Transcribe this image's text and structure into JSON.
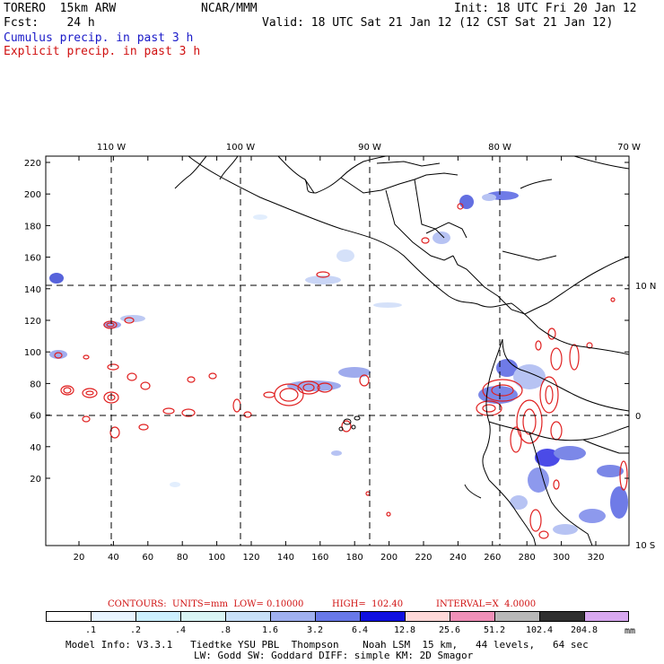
{
  "header": {
    "model": "TORERO  15km ARW",
    "org": "NCAR/MMM",
    "init": "Init: 18 UTC Fri 20 Jan 12",
    "fcst": "Fcst:    24 h",
    "valid": "Valid: 18 UTC Sat 21 Jan 12 (12 CST Sat 21 Jan 12)",
    "cumulus": "Cumulus precip. in past 3 h",
    "explicit": "Explicit precip. in past 3 h"
  },
  "map": {
    "lon_labels": [
      "110 W",
      "100 W",
      "90 W",
      "80 W",
      "70 W"
    ],
    "lat_labels": [
      "10 N",
      "0",
      "10 S"
    ],
    "y_ticks": [
      "220",
      "200",
      "180",
      "160",
      "140",
      "120",
      "100",
      "80",
      "60",
      "40",
      "20"
    ],
    "x_ticks": [
      "20",
      "40",
      "60",
      "80",
      "100",
      "120",
      "140",
      "160",
      "180",
      "200",
      "220",
      "240",
      "260",
      "280",
      "300",
      "320"
    ]
  },
  "contours": {
    "label": "CONTOURS:  UNITS=mm  LOW= 0.10000",
    "high": "HIGH=  102.40",
    "interval": "INTERVAL=X  4.0000"
  },
  "colorbar": {
    "colors": [
      "#ffffff",
      "#e8f4ff",
      "#ccf0ff",
      "#d8f4f4",
      "#c8e0f8",
      "#a0b0f0",
      "#6878e8",
      "#1010e0",
      "#ffd8d8",
      "#f090b8",
      "#b8b8b8",
      "#303030",
      "#d8a8f0"
    ],
    "labels": [
      ".1",
      ".2",
      ".4",
      ".8",
      "1.6",
      "3.2",
      "6.4",
      "12.8",
      "25.6",
      "51.2",
      "102.4",
      "204.8"
    ],
    "unit": "mm"
  },
  "footer": {
    "line1": "Model Info: V3.3.1   Tiedtke YSU PBL  Thompson    Noah LSM  15 km,   44 levels,   64 sec",
    "line2": "LW: Godd SW: Goddard DIFF: simple KM: 2D Smagor"
  }
}
